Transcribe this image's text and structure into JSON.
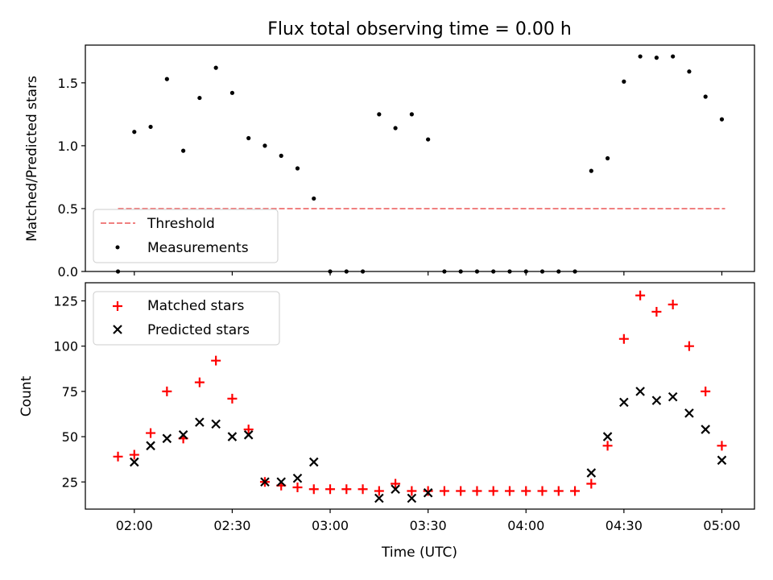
{
  "figure": {
    "title": "Flux total observing time = 0.00 h",
    "xlabel": "Time (UTC)",
    "x_ticks": [
      {
        "t": 120,
        "label": "02:00"
      },
      {
        "t": 150,
        "label": "02:30"
      },
      {
        "t": 180,
        "label": "03:00"
      },
      {
        "t": 210,
        "label": "03:30"
      },
      {
        "t": 240,
        "label": "04:00"
      },
      {
        "t": 270,
        "label": "04:30"
      },
      {
        "t": 300,
        "label": "05:00"
      }
    ]
  },
  "chart_data": [
    {
      "type": "scatter",
      "title": "Flux total observing time = 0.00 h",
      "xlabel": "",
      "ylabel": "Matched/Predicted stars",
      "x_unit": "minutes after 00:00 UTC",
      "xlim": [
        105,
        310
      ],
      "ylim": [
        0,
        1.8
      ],
      "y_ticks": [
        0.0,
        0.5,
        1.0,
        1.5
      ],
      "y_tick_labels": [
        "0.0",
        "0.5",
        "1.0",
        "1.5"
      ],
      "legend_position": "lower-left",
      "threshold": {
        "name": "Threshold",
        "y": 0.5,
        "x_range": [
          115,
          301
        ],
        "color": "#f08080",
        "style": "dashed"
      },
      "series": [
        {
          "name": "Measurements",
          "color": "#000000",
          "marker": "dot",
          "x": [
            115,
            120,
            125,
            130,
            135,
            140,
            145,
            150,
            155,
            160,
            165,
            170,
            175,
            180,
            185,
            190,
            195,
            200,
            205,
            210,
            215,
            220,
            225,
            230,
            235,
            240,
            245,
            250,
            255,
            260,
            265,
            270,
            275,
            280,
            285,
            290,
            295,
            300
          ],
          "y": [
            0,
            1.11,
            1.15,
            1.53,
            0.96,
            1.38,
            1.62,
            1.42,
            1.06,
            1.0,
            0.92,
            0.82,
            0.58,
            0,
            0,
            0,
            1.25,
            1.14,
            1.25,
            1.05,
            0,
            0,
            0,
            0,
            0,
            0,
            0,
            0,
            0,
            0.8,
            0.9,
            1.51,
            1.71,
            1.7,
            1.71,
            1.59,
            1.39,
            1.21
          ]
        }
      ]
    },
    {
      "type": "scatter",
      "title": "",
      "xlabel": "Time (UTC)",
      "ylabel": "Count",
      "x_unit": "minutes after 00:00 UTC",
      "xlim": [
        105,
        310
      ],
      "ylim": [
        10,
        135
      ],
      "y_ticks": [
        25,
        50,
        75,
        100,
        125
      ],
      "y_tick_labels": [
        "25",
        "50",
        "75",
        "100",
        "125"
      ],
      "legend_position": "upper-left",
      "series": [
        {
          "name": "Matched stars",
          "color": "#ff0000",
          "marker": "plus",
          "x": [
            115,
            120,
            125,
            130,
            135,
            140,
            145,
            150,
            155,
            160,
            165,
            170,
            175,
            180,
            185,
            190,
            195,
            200,
            205,
            210,
            215,
            220,
            225,
            230,
            235,
            240,
            245,
            250,
            255,
            260,
            265,
            270,
            275,
            280,
            285,
            290,
            295,
            300
          ],
          "y": [
            39,
            40,
            52,
            75,
            49,
            80,
            92,
            71,
            54,
            25,
            23,
            22,
            21,
            21,
            21,
            21,
            20,
            24,
            20,
            20,
            20,
            20,
            20,
            20,
            20,
            20,
            20,
            20,
            20,
            24,
            45,
            104,
            128,
            119,
            123,
            100,
            75,
            45
          ]
        },
        {
          "name": "Predicted stars",
          "color": "#000000",
          "marker": "x",
          "x": [
            120,
            125,
            130,
            135,
            140,
            145,
            150,
            155,
            160,
            165,
            170,
            175,
            195,
            200,
            205,
            210,
            260,
            265,
            270,
            275,
            280,
            285,
            290,
            295,
            300
          ],
          "y": [
            36,
            45,
            49,
            51,
            58,
            57,
            50,
            51,
            25,
            25,
            27,
            36,
            16,
            21,
            16,
            19,
            30,
            50,
            69,
            75,
            70,
            72,
            63,
            54,
            37
          ]
        }
      ]
    }
  ]
}
